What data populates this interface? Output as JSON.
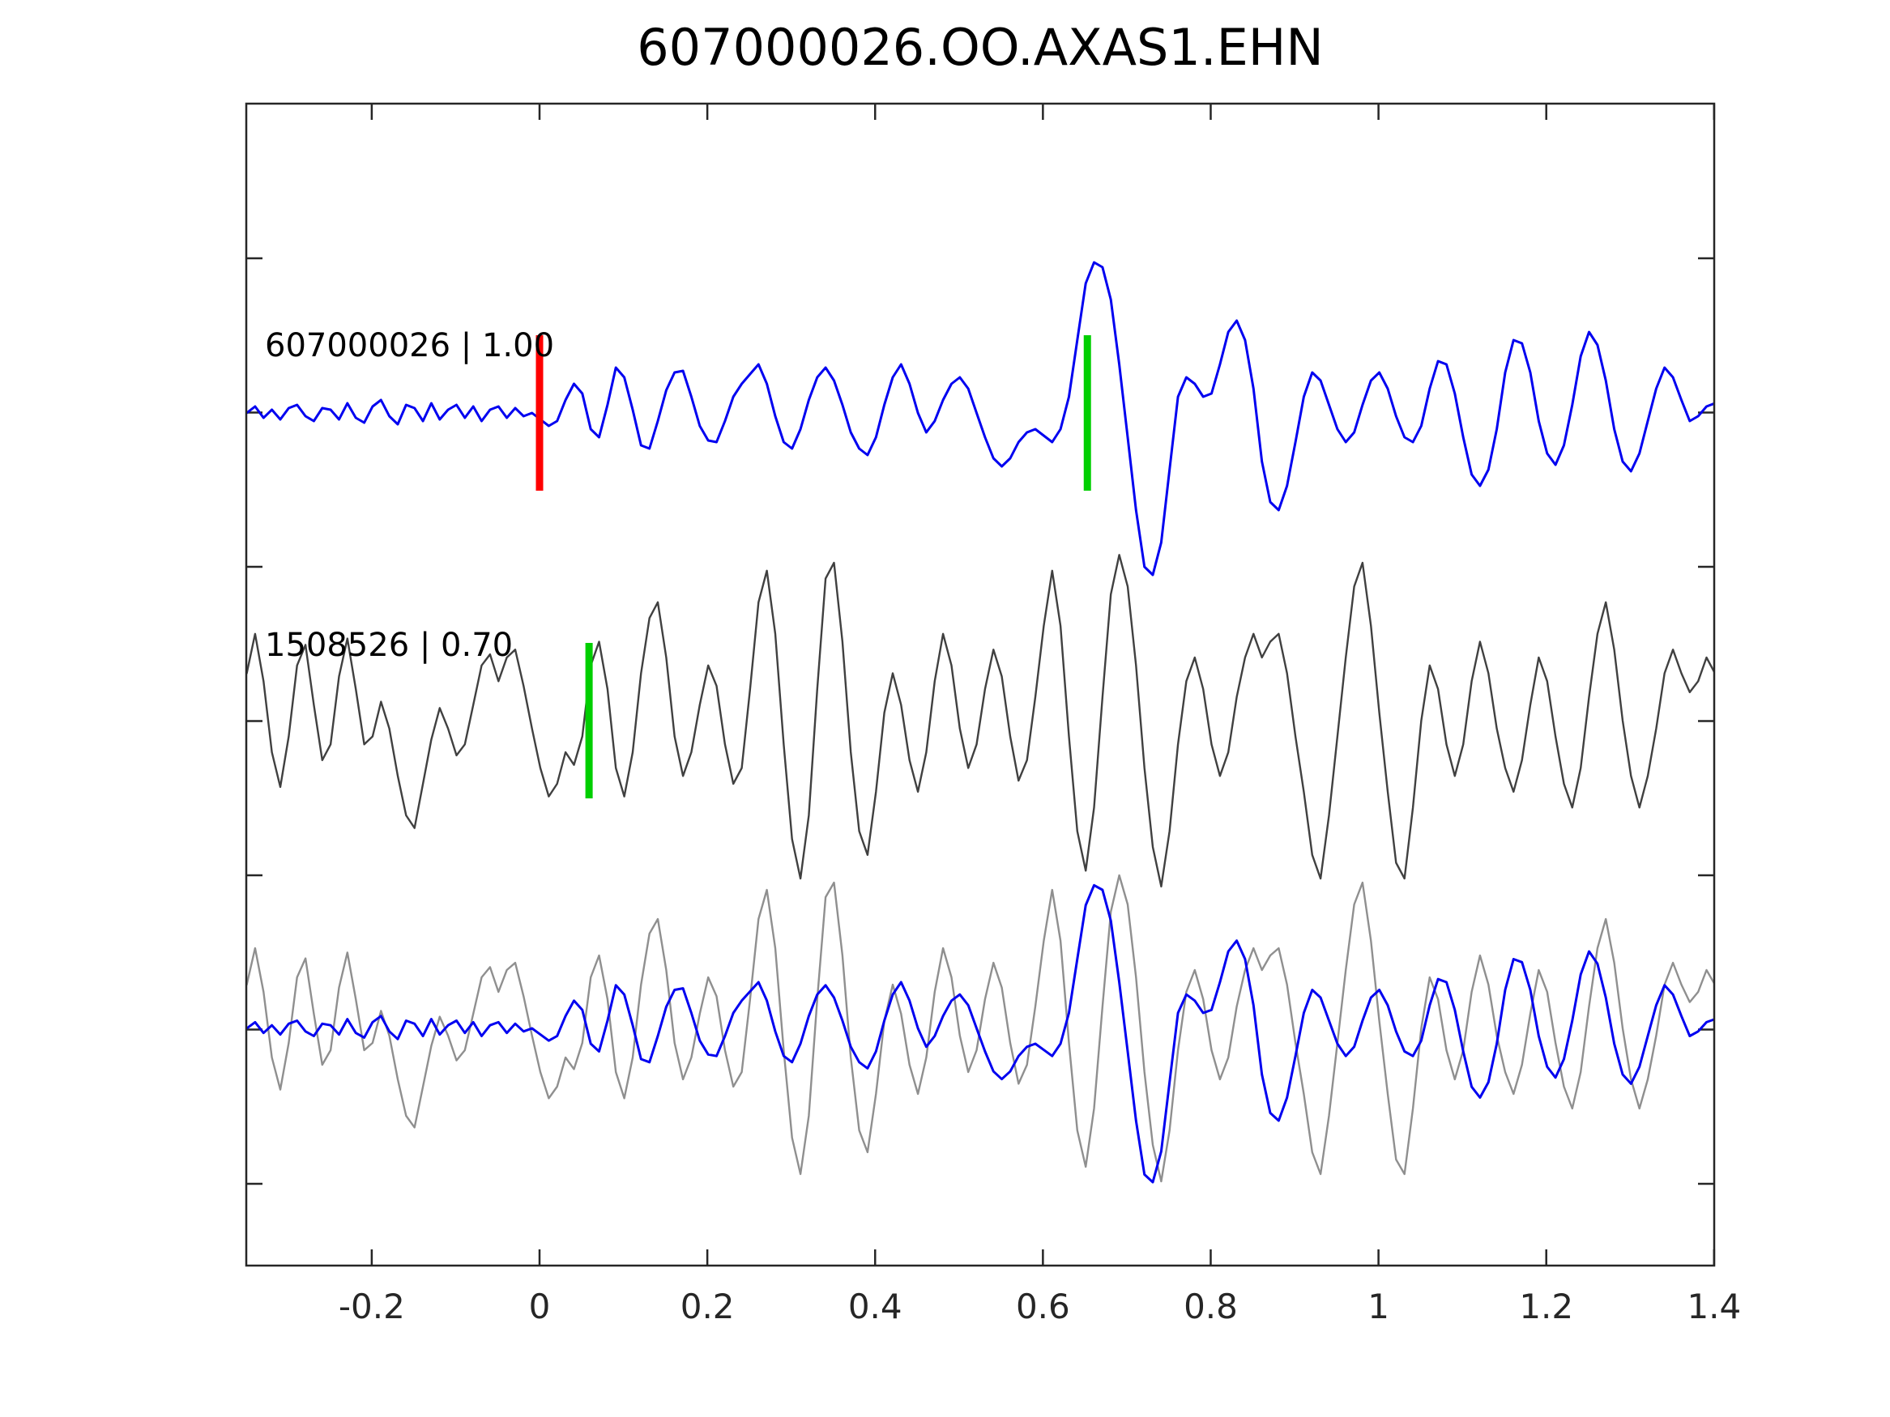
{
  "title": "607000026.OO.AXAS1.EHN",
  "colors": {
    "template_blue": "#0000f0",
    "detection_gray": "#404040",
    "overlay_gray": "#8f8f8f",
    "pick_red": "#ff0000",
    "pick_green": "#00cf00",
    "axes": "#262626"
  },
  "chart_data": {
    "type": "line",
    "title": "607000026.OO.AXAS1.EHN",
    "xlabel": "",
    "ylabel": "",
    "xlim": [
      -0.35,
      1.4
    ],
    "grid": false,
    "legend": "none",
    "x_ticks": {
      "values": [
        -0.2,
        0,
        0.2,
        0.4,
        0.6,
        0.8,
        1,
        1.2,
        1.4
      ],
      "labels": [
        "-0.2",
        "0",
        "0.2",
        "0.4",
        "0.6",
        "0.8",
        "1",
        "1.2",
        "1.4"
      ]
    },
    "rows": [
      {
        "label": "607000026 | 1.00",
        "content": "template waveform (blue)"
      },
      {
        "label": "1508526 | 0.70",
        "content": "detection waveform (gray)"
      },
      {
        "label": "",
        "content": "overlay of detection (light gray) and template (blue)"
      }
    ],
    "picks": [
      {
        "trace": "template",
        "time": 0.0,
        "color_key": "pick_red"
      },
      {
        "trace": "template",
        "time": 0.653,
        "color_key": "pick_green"
      },
      {
        "trace": "detection",
        "time": 0.059,
        "color_key": "pick_green"
      }
    ],
    "sampling": {
      "t0": -0.349,
      "dt": 0.01,
      "n": 176,
      "amplitude_units": "normalized"
    },
    "series": [
      {
        "name": "template",
        "values": [
          0.0,
          0.04,
          -0.03,
          0.02,
          -0.04,
          0.03,
          0.05,
          -0.02,
          -0.05,
          0.03,
          0.02,
          -0.04,
          0.06,
          -0.03,
          -0.06,
          0.04,
          0.08,
          -0.02,
          -0.07,
          0.05,
          0.03,
          -0.05,
          0.06,
          -0.04,
          0.02,
          0.05,
          -0.03,
          0.04,
          -0.05,
          0.02,
          0.04,
          -0.03,
          0.03,
          -0.02,
          0.0,
          -0.04,
          -0.08,
          -0.05,
          0.08,
          0.18,
          0.12,
          -0.1,
          -0.15,
          0.05,
          0.28,
          0.22,
          0.02,
          -0.2,
          -0.22,
          -0.05,
          0.14,
          0.25,
          0.26,
          0.1,
          -0.08,
          -0.17,
          -0.18,
          -0.05,
          0.1,
          0.18,
          0.24,
          0.3,
          0.18,
          -0.02,
          -0.18,
          -0.22,
          -0.1,
          0.08,
          0.22,
          0.28,
          0.2,
          0.05,
          -0.12,
          -0.22,
          -0.26,
          -0.15,
          0.05,
          0.22,
          0.3,
          0.18,
          0.0,
          -0.12,
          -0.05,
          0.08,
          0.18,
          0.22,
          0.15,
          0.0,
          -0.15,
          -0.28,
          -0.33,
          -0.28,
          -0.18,
          -0.12,
          -0.1,
          -0.14,
          -0.18,
          -0.1,
          0.1,
          0.45,
          0.8,
          0.93,
          0.9,
          0.7,
          0.3,
          -0.15,
          -0.6,
          -0.95,
          -1.0,
          -0.8,
          -0.35,
          0.1,
          0.22,
          0.18,
          0.1,
          0.12,
          0.3,
          0.5,
          0.57,
          0.45,
          0.15,
          -0.3,
          -0.55,
          -0.6,
          -0.45,
          -0.18,
          0.1,
          0.25,
          0.2,
          0.05,
          -0.1,
          -0.18,
          -0.12,
          0.05,
          0.2,
          0.25,
          0.15,
          -0.02,
          -0.15,
          -0.18,
          -0.08,
          0.15,
          0.32,
          0.3,
          0.12,
          -0.15,
          -0.38,
          -0.45,
          -0.35,
          -0.1,
          0.25,
          0.45,
          0.43,
          0.25,
          -0.05,
          -0.25,
          -0.32,
          -0.2,
          0.05,
          0.35,
          0.5,
          0.42,
          0.2,
          -0.1,
          -0.3,
          -0.36,
          -0.25,
          -0.05,
          0.15,
          0.28,
          0.22,
          0.08,
          -0.05,
          -0.02,
          0.04,
          0.06
        ]
      },
      {
        "name": "detection",
        "values": [
          0.3,
          0.55,
          0.25,
          -0.2,
          -0.42,
          -0.1,
          0.35,
          0.48,
          0.1,
          -0.25,
          -0.15,
          0.28,
          0.52,
          0.2,
          -0.15,
          -0.1,
          0.12,
          -0.05,
          -0.35,
          -0.6,
          -0.68,
          -0.4,
          -0.12,
          0.08,
          -0.05,
          -0.22,
          -0.15,
          0.1,
          0.35,
          0.42,
          0.25,
          0.4,
          0.45,
          0.22,
          -0.05,
          -0.3,
          -0.48,
          -0.4,
          -0.2,
          -0.28,
          -0.1,
          0.35,
          0.5,
          0.2,
          -0.3,
          -0.48,
          -0.2,
          0.3,
          0.65,
          0.75,
          0.4,
          -0.1,
          -0.35,
          -0.2,
          0.1,
          0.35,
          0.22,
          -0.15,
          -0.4,
          -0.3,
          0.2,
          0.75,
          0.95,
          0.55,
          -0.15,
          -0.75,
          -1.0,
          -0.6,
          0.2,
          0.9,
          1.0,
          0.5,
          -0.2,
          -0.7,
          -0.85,
          -0.45,
          0.05,
          0.3,
          0.1,
          -0.25,
          -0.45,
          -0.2,
          0.25,
          0.55,
          0.35,
          -0.05,
          -0.3,
          -0.15,
          0.2,
          0.45,
          0.28,
          -0.1,
          -0.38,
          -0.25,
          0.15,
          0.6,
          0.95,
          0.6,
          -0.1,
          -0.7,
          -0.95,
          -0.55,
          0.15,
          0.8,
          1.05,
          0.85,
          0.35,
          -0.3,
          -0.8,
          -1.05,
          -0.7,
          -0.15,
          0.25,
          0.4,
          0.2,
          -0.15,
          -0.35,
          -0.2,
          0.15,
          0.4,
          0.55,
          0.4,
          0.5,
          0.55,
          0.3,
          -0.1,
          -0.45,
          -0.85,
          -1.0,
          -0.6,
          -0.1,
          0.4,
          0.85,
          1.0,
          0.6,
          0.05,
          -0.45,
          -0.9,
          -1.0,
          -0.55,
          0.0,
          0.35,
          0.2,
          -0.15,
          -0.35,
          -0.15,
          0.25,
          0.5,
          0.3,
          -0.05,
          -0.3,
          -0.45,
          -0.25,
          0.1,
          0.4,
          0.25,
          -0.1,
          -0.4,
          -0.55,
          -0.3,
          0.15,
          0.55,
          0.75,
          0.45,
          0.0,
          -0.35,
          -0.55,
          -0.35,
          -0.05,
          0.3,
          0.45,
          0.3,
          0.18,
          0.25,
          0.4,
          0.3
        ]
      }
    ]
  }
}
